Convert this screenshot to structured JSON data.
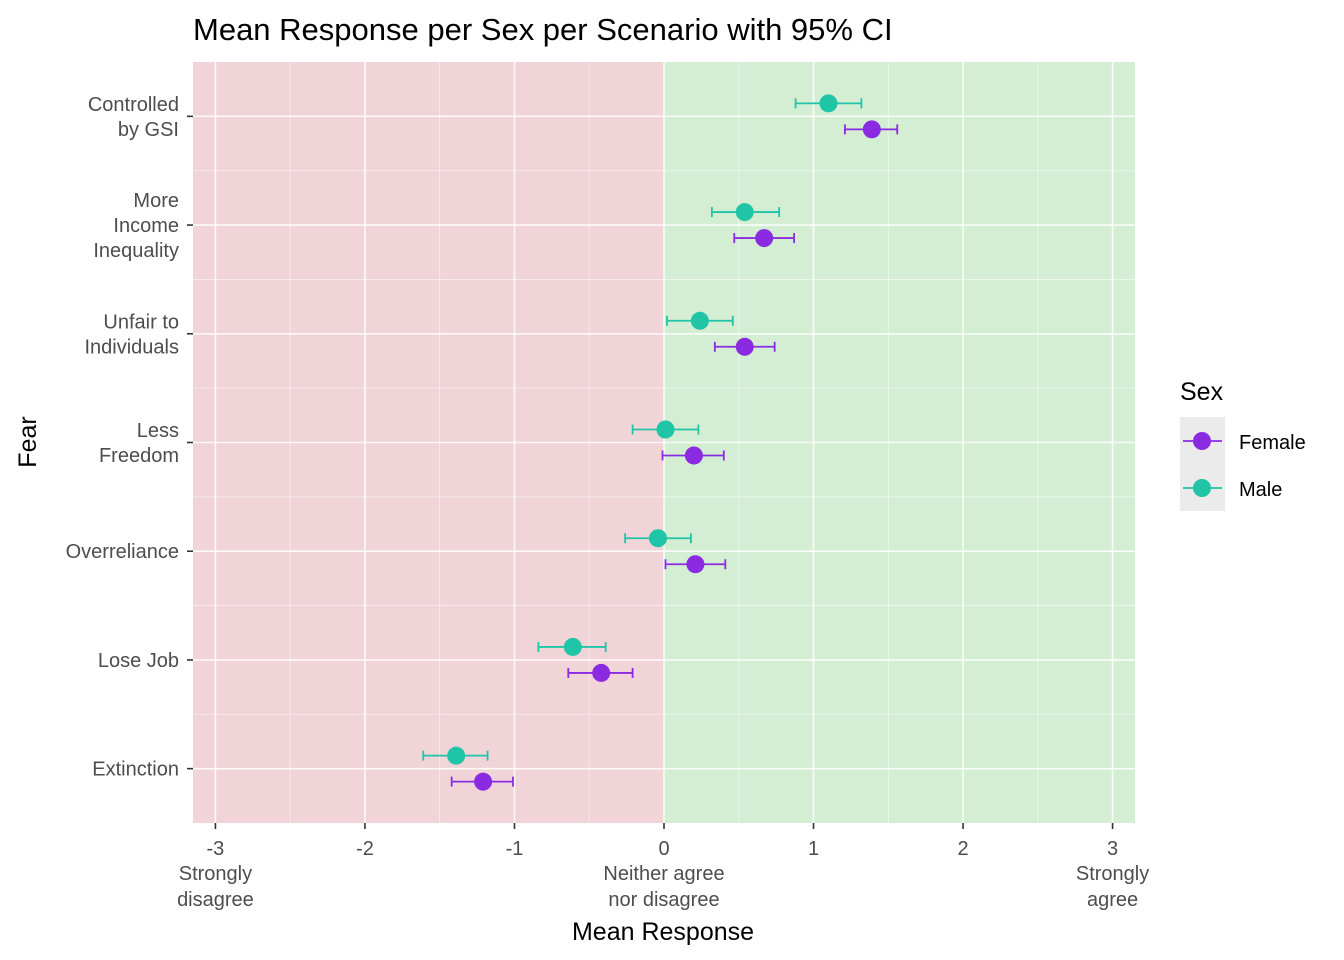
{
  "chart_data": {
    "type": "scatter",
    "title": "Mean Response per Sex per Scenario with 95% CI",
    "xlabel": "Mean Response",
    "ylabel": "Fear",
    "xlim": [
      -3.15,
      3.15
    ],
    "x_ticks": [
      {
        "value": -3,
        "label": "-3",
        "sublabel": [
          "Strongly",
          "disagree"
        ]
      },
      {
        "value": -2,
        "label": "-2",
        "sublabel": []
      },
      {
        "value": -1,
        "label": "-1",
        "sublabel": []
      },
      {
        "value": 0,
        "label": "0",
        "sublabel": [
          "Neither agree",
          "nor disagree"
        ]
      },
      {
        "value": 1,
        "label": "1",
        "sublabel": []
      },
      {
        "value": 2,
        "label": "2",
        "sublabel": []
      },
      {
        "value": 3,
        "label": "3",
        "sublabel": [
          "Strongly",
          "agree"
        ]
      }
    ],
    "categories": [
      {
        "id": "gsi",
        "lines": [
          "Controlled",
          "by GSI"
        ]
      },
      {
        "id": "inequality",
        "lines": [
          "More",
          "Income",
          "Inequality"
        ]
      },
      {
        "id": "unfair",
        "lines": [
          "Unfair to",
          "Individuals"
        ]
      },
      {
        "id": "freedom",
        "lines": [
          "Less",
          "Freedom"
        ]
      },
      {
        "id": "overreliance",
        "lines": [
          "Overreliance"
        ]
      },
      {
        "id": "losejob",
        "lines": [
          "Lose Job"
        ]
      },
      {
        "id": "extinction",
        "lines": [
          "Extinction"
        ]
      }
    ],
    "background_regions": [
      {
        "from": -3.15,
        "to": 0,
        "color": "#f0d4d7"
      },
      {
        "from": 0,
        "to": 3.15,
        "color": "#d4eed4"
      }
    ],
    "grid": true,
    "legend": {
      "title": "Sex",
      "position": "right"
    },
    "series": [
      {
        "name": "Female",
        "color": "#8a2be2",
        "mean": [
          1.39,
          0.67,
          0.54,
          0.2,
          0.21,
          -0.42,
          -1.21
        ],
        "ci_low": [
          1.21,
          0.47,
          0.34,
          -0.01,
          0.01,
          -0.64,
          -1.42
        ],
        "ci_high": [
          1.56,
          0.87,
          0.74,
          0.4,
          0.41,
          -0.21,
          -1.01
        ]
      },
      {
        "name": "Male",
        "color": "#20c4a6",
        "mean": [
          1.1,
          0.54,
          0.24,
          0.01,
          -0.04,
          -0.61,
          -1.39
        ],
        "ci_low": [
          0.88,
          0.32,
          0.02,
          -0.21,
          -0.26,
          -0.84,
          -1.61
        ],
        "ci_high": [
          1.32,
          0.77,
          0.46,
          0.23,
          0.18,
          -0.39,
          -1.18
        ]
      }
    ]
  }
}
